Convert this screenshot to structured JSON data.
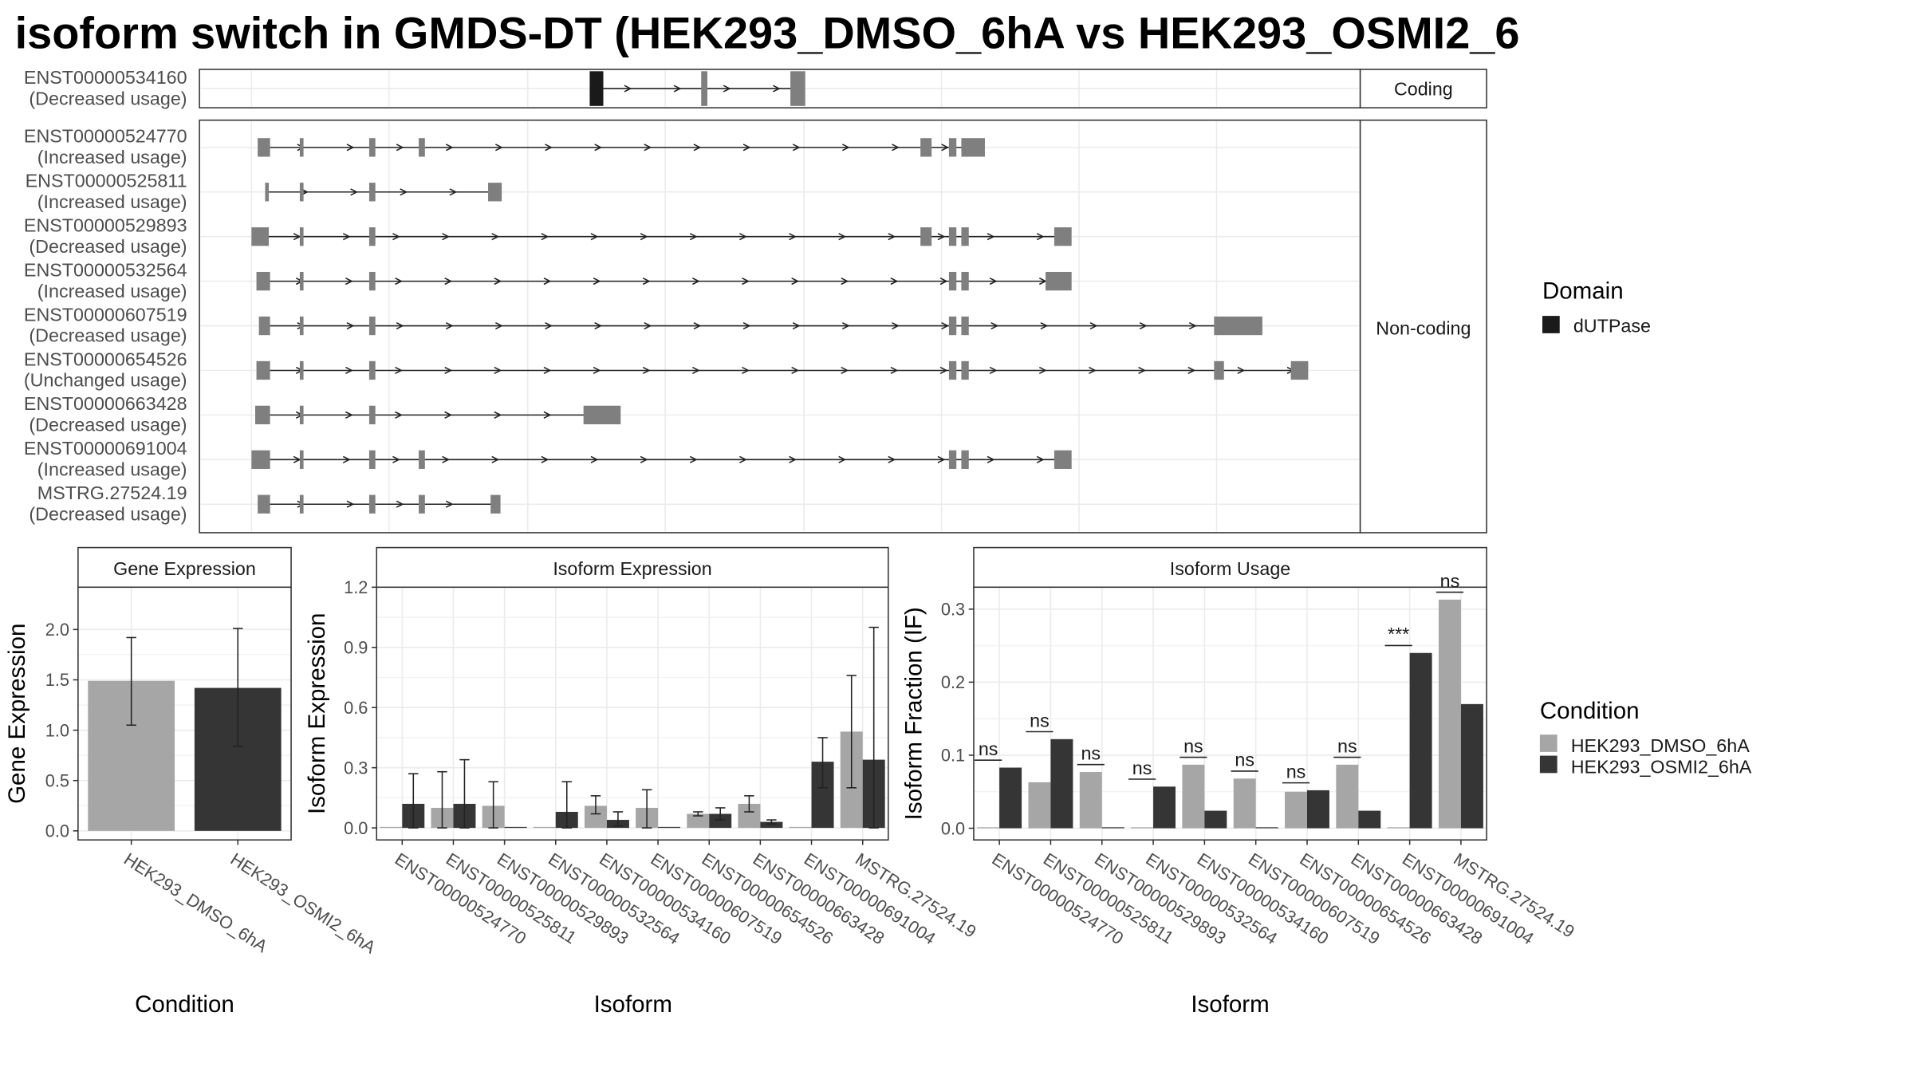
{
  "title": "isoform switch in GMDS-DT (HEK293_DMSO_6hA vs HEK293_OSMI2_6",
  "colors": {
    "dmso": "#a6a6a6",
    "osmi": "#353535",
    "exon": "#7f7f7f",
    "domain": "#1a1a1a",
    "grid": "#ebebeb",
    "strip": "#ffffff"
  },
  "structure": {
    "coding_label": "Coding",
    "noncoding_label": "Non-coding",
    "coding": [
      {
        "id": "ENST00000534160",
        "status": "(Decreased usage)",
        "intron": [
          477,
          645
        ],
        "exons": [
          [
            476,
            487,
            "domain"
          ],
          [
            566,
            571,
            "exon"
          ],
          [
            638,
            642,
            "exon"
          ],
          [
            641,
            650,
            "exon"
          ]
        ]
      }
    ],
    "noncoding": [
      {
        "id": "ENST00000524770",
        "status": "(Increased usage)",
        "intron": [
          213,
          785
        ],
        "exons": [
          [
            208,
            218
          ],
          [
            242,
            245
          ],
          [
            298,
            303
          ],
          [
            338,
            343
          ],
          [
            743,
            752
          ],
          [
            766,
            772
          ],
          [
            776,
            795
          ]
        ]
      },
      {
        "id": "ENST00000525811",
        "status": "(Increased usage)",
        "intron": [
          216,
          400
        ],
        "exons": [
          [
            214,
            217
          ],
          [
            242,
            245
          ],
          [
            298,
            303
          ],
          [
            394,
            405
          ]
        ]
      },
      {
        "id": "ENST00000529893",
        "status": "(Decreased usage)",
        "intron": [
          210,
          858
        ],
        "exons": [
          [
            203,
            217
          ],
          [
            242,
            245
          ],
          [
            298,
            303
          ],
          [
            743,
            752
          ],
          [
            766,
            772
          ],
          [
            776,
            782
          ],
          [
            851,
            865
          ]
        ]
      },
      {
        "id": "ENST00000532564",
        "status": "(Increased usage)",
        "intron": [
          212,
          855
        ],
        "exons": [
          [
            207,
            218
          ],
          [
            242,
            245
          ],
          [
            298,
            303
          ],
          [
            766,
            772
          ],
          [
            776,
            782
          ],
          [
            844,
            865
          ]
        ]
      },
      {
        "id": "ENST00000607519",
        "status": "(Decreased usage)",
        "intron": [
          213,
          1000
        ],
        "exons": [
          [
            209,
            218
          ],
          [
            242,
            245
          ],
          [
            298,
            303
          ],
          [
            766,
            772
          ],
          [
            776,
            782
          ],
          [
            980,
            1019
          ]
        ]
      },
      {
        "id": "ENST00000654526",
        "status": "(Unchanged usage)",
        "intron": [
          212,
          1050
        ],
        "exons": [
          [
            207,
            218
          ],
          [
            242,
            245
          ],
          [
            298,
            303
          ],
          [
            766,
            772
          ],
          [
            776,
            782
          ],
          [
            980,
            988
          ],
          [
            1042,
            1056
          ]
        ]
      },
      {
        "id": "ENST00000663428",
        "status": "(Decreased usage)",
        "intron": [
          212,
          485
        ],
        "exons": [
          [
            206,
            218
          ],
          [
            242,
            245
          ],
          [
            298,
            303
          ],
          [
            471,
            501
          ]
        ]
      },
      {
        "id": "ENST00000691004",
        "status": "(Increased usage)",
        "intron": [
          210,
          858
        ],
        "exons": [
          [
            203,
            218
          ],
          [
            242,
            245
          ],
          [
            298,
            303
          ],
          [
            338,
            343
          ],
          [
            766,
            772
          ],
          [
            776,
            782
          ],
          [
            851,
            865
          ]
        ]
      },
      {
        "id": "MSTRG.27524.19",
        "status": "(Decreased usage)",
        "intron": [
          213,
          400
        ],
        "exons": [
          [
            208,
            218
          ],
          [
            242,
            245
          ],
          [
            298,
            303
          ],
          [
            338,
            343
          ],
          [
            396,
            404
          ]
        ]
      }
    ],
    "legend_title": "Domain",
    "legend_item": "dUTPase"
  },
  "conditions": [
    "HEK293_DMSO_6hA",
    "HEK293_OSMI2_6hA"
  ],
  "condition_legend_title": "Condition",
  "chart_data": [
    {
      "type": "bar",
      "title": "Gene Expression",
      "xlabel": "Condition",
      "ylabel": "Gene Expression",
      "ylim": [
        -0.09,
        2.42
      ],
      "yticks": [
        "0.0",
        "0.5",
        "1.0",
        "1.5",
        "2.0"
      ],
      "categories": [
        "HEK293_DMSO_6hA",
        "HEK293_OSMI2_6hA"
      ],
      "values": [
        1.49,
        1.42
      ],
      "error": [
        [
          1.05,
          1.92
        ],
        [
          0.84,
          2.01
        ]
      ]
    },
    {
      "type": "bar",
      "title": "Isoform Expression",
      "xlabel": "Isoform",
      "ylabel": "Isoform Expression",
      "ylim": [
        -0.06,
        1.2
      ],
      "yticks": [
        "0.0",
        "0.3",
        "0.6",
        "0.9",
        "1.2"
      ],
      "categories": [
        "ENST00000524770",
        "ENST00000525811",
        "ENST00000529893",
        "ENST00000532564",
        "ENST00000534160",
        "ENST00000607519",
        "ENST00000654526",
        "ENST00000663428",
        "ENST00000691004",
        "MSTRG.27524.19"
      ],
      "series": [
        {
          "name": "HEK293_DMSO_6hA",
          "values": [
            0.0,
            0.1,
            0.11,
            0.0,
            0.11,
            0.1,
            0.07,
            0.12,
            0.0,
            0.48
          ],
          "error": [
            [
              0.0,
              0.0
            ],
            [
              0.0,
              0.28
            ],
            [
              0.0,
              0.23
            ],
            [
              0.0,
              0.0
            ],
            [
              0.07,
              0.16
            ],
            [
              0.0,
              0.19
            ],
            [
              0.06,
              0.08
            ],
            [
              0.08,
              0.16
            ],
            [
              0.0,
              0.0
            ],
            [
              0.2,
              0.76
            ]
          ]
        },
        {
          "name": "HEK293_OSMI2_6hA",
          "values": [
            0.12,
            0.12,
            0.0,
            0.08,
            0.04,
            0.0,
            0.07,
            0.03,
            0.33,
            0.34
          ],
          "error": [
            [
              0.0,
              0.27
            ],
            [
              0.0,
              0.34
            ],
            [
              0.0,
              0.0
            ],
            [
              0.0,
              0.23
            ],
            [
              0.01,
              0.08
            ],
            [
              0.0,
              0.0
            ],
            [
              0.04,
              0.1
            ],
            [
              0.02,
              0.04
            ],
            [
              0.2,
              0.45
            ],
            [
              0.0,
              1.0
            ]
          ]
        }
      ]
    },
    {
      "type": "bar",
      "title": "Isoform Usage",
      "xlabel": "Isoform",
      "ylabel": "Isoform Fraction (IF)",
      "ylim": [
        -0.016,
        0.33
      ],
      "yticks": [
        "0.0",
        "0.1",
        "0.2",
        "0.3"
      ],
      "categories": [
        "ENST00000524770",
        "ENST00000525811",
        "ENST00000529893",
        "ENST00000532564",
        "ENST00000534160",
        "ENST00000607519",
        "ENST00000654526",
        "ENST00000663428",
        "ENST00000691004",
        "MSTRG.27524.19"
      ],
      "series": [
        {
          "name": "HEK293_DMSO_6hA",
          "values": [
            0.0,
            0.063,
            0.077,
            0.0,
            0.087,
            0.068,
            0.05,
            0.087,
            0.0,
            0.313
          ]
        },
        {
          "name": "HEK293_OSMI2_6hA",
          "values": [
            0.083,
            0.122,
            0.0,
            0.057,
            0.024,
            0.0,
            0.052,
            0.024,
            0.24,
            0.17
          ]
        }
      ],
      "significance": [
        "ns",
        "ns",
        "ns",
        "ns",
        "ns",
        "ns",
        "ns",
        "ns",
        "***",
        "ns"
      ]
    }
  ]
}
